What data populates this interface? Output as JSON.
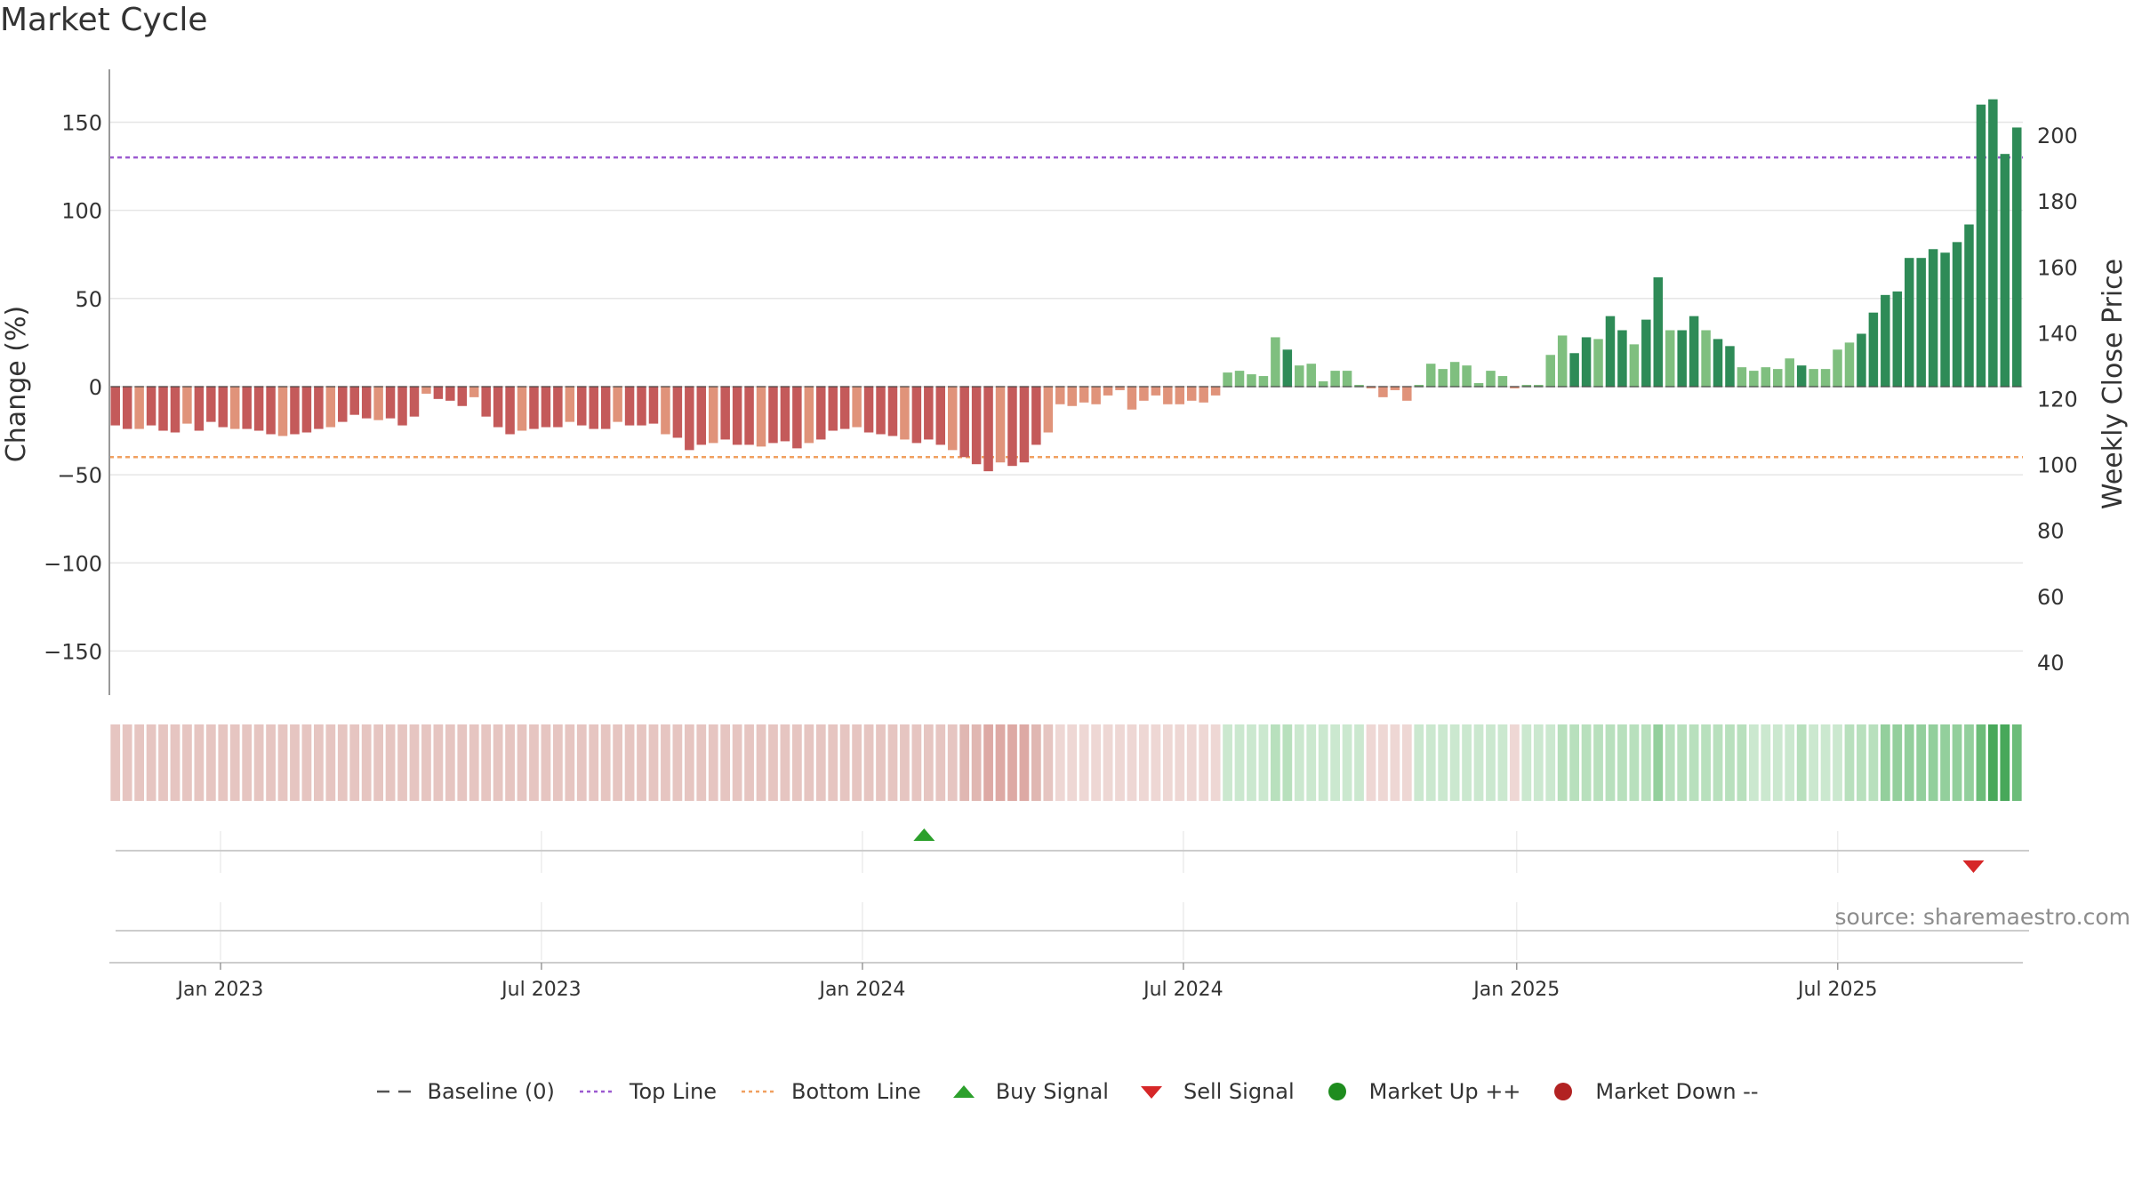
{
  "chart_data": {
    "type": "bar",
    "title": "Market Cycle",
    "ylabel_left": "Change (%)",
    "ylabel_right": "Weekly Close Price",
    "ylim_left": [
      -175,
      180
    ],
    "yticks_left": [
      150,
      100,
      50,
      0,
      -50,
      -100,
      -150
    ],
    "ytick_labels_left": [
      "150",
      "100",
      "50",
      "0",
      "−50",
      "−100",
      "−150"
    ],
    "ylim_right": [
      30,
      220
    ],
    "yticks_right": [
      200,
      180,
      160,
      140,
      120,
      100,
      80,
      60,
      40
    ],
    "ytick_labels_right": [
      "200",
      "180",
      "160",
      "140",
      "120",
      "100",
      "80",
      "60",
      "40"
    ],
    "x_start": "2022-10-31",
    "x_end": "2025-10-20",
    "xtick_dates": [
      "2023-01-02",
      "2023-07-03",
      "2024-01-01",
      "2024-07-01",
      "2025-01-06",
      "2025-07-07"
    ],
    "xtick_labels": [
      "Jan 2023",
      "Jul 2023",
      "Jan 2024",
      "Jul 2024",
      "Jan 2025",
      "Jul 2025"
    ],
    "top_line": 130,
    "bottom_line": -40,
    "baseline": 0,
    "change": [
      -22,
      -24,
      -24,
      -22,
      -25,
      -26,
      -21,
      -25,
      -20,
      -23,
      -24,
      -24,
      -25,
      -27,
      -28,
      -27,
      -26,
      -24,
      -23,
      -20,
      -16,
      -18,
      -19,
      -18,
      -22,
      -17,
      -4,
      -7,
      -8,
      -11,
      -6,
      -17,
      -23,
      -27,
      -25,
      -24,
      -23,
      -23,
      -20,
      -22,
      -24,
      -24,
      -20,
      -22,
      -22,
      -21,
      -27,
      -29,
      -36,
      -33,
      -32,
      -30,
      -33,
      -33,
      -34,
      -32,
      -31,
      -35,
      -32,
      -30,
      -25,
      -24,
      -23,
      -26,
      -27,
      -28,
      -30,
      -32,
      -30,
      -33,
      -36,
      -40,
      -44,
      -48,
      -43,
      -45,
      -43,
      -33,
      -26,
      -10,
      -11,
      -9,
      -10,
      -5,
      -2,
      -13,
      -8,
      -5,
      -10,
      -10,
      -8,
      -9,
      -5,
      8,
      9,
      7,
      6,
      28,
      21,
      12,
      13,
      3,
      9,
      9,
      1,
      -1,
      -6,
      -2,
      -8,
      1,
      13,
      10,
      14,
      12,
      2,
      9,
      6,
      -1,
      1,
      1,
      18,
      29,
      19,
      28,
      27,
      40,
      32,
      24,
      38,
      62,
      32,
      32,
      40,
      32,
      27,
      23,
      11,
      9,
      11,
      10,
      16,
      12,
      10,
      10,
      21,
      25,
      30,
      42,
      52,
      54,
      73,
      73,
      78,
      76,
      82,
      92,
      160,
      163,
      132,
      147
    ],
    "mood": [
      -3,
      -3,
      -3,
      -3,
      -3,
      -3,
      -3,
      -3,
      -3,
      -3,
      -3,
      -3,
      -3,
      -3,
      -3,
      -3,
      -3,
      -3,
      -3,
      -3,
      -3,
      -3,
      -3,
      -3,
      -3,
      -3,
      -3,
      -3,
      -3,
      -3,
      -3,
      -3,
      -3,
      -3,
      -3,
      -3,
      -3,
      -3,
      -3,
      -3,
      -3,
      -3,
      -3,
      -3,
      -3,
      -3,
      -3,
      -3,
      -3,
      -3,
      -3,
      -3,
      -3,
      -3,
      -3,
      -3,
      -3,
      -3,
      -3,
      -3,
      -3,
      -3,
      -3,
      -3,
      -3,
      -3,
      -3,
      -3,
      -3,
      -3,
      -3,
      -4,
      -4,
      -5,
      -5,
      -5,
      -5,
      -4,
      -3,
      -2,
      -2,
      -2,
      -2,
      -2,
      -2,
      -2,
      -2,
      -2,
      -2,
      -2,
      -2,
      -2,
      -2,
      2,
      2,
      2,
      2,
      3,
      3,
      2,
      2,
      2,
      2,
      2,
      2,
      -2,
      -2,
      -2,
      -2,
      2,
      2,
      2,
      2,
      2,
      2,
      2,
      2,
      -2,
      2,
      2,
      2,
      3,
      3,
      3,
      3,
      3,
      3,
      3,
      3,
      4,
      3,
      3,
      3,
      3,
      3,
      3,
      3,
      2,
      2,
      2,
      2,
      3,
      2,
      2,
      2,
      3,
      3,
      3,
      4,
      4,
      4,
      4,
      4,
      4,
      4,
      4,
      5,
      6,
      6,
      5
    ],
    "buy_signals": [
      {
        "date": "2024-02-05",
        "y": 0
      }
    ],
    "sell_signals": [
      {
        "date": "2025-09-22",
        "y": 0
      }
    ],
    "legend_position": "bottom-center",
    "colors": {
      "red_dark": "#c45a5a",
      "red_light": "#e0937a",
      "green_dark": "#2e8b57",
      "green_light": "#7fbf7f",
      "grey_bar": "#9e9e9e",
      "top_line": "#9b59d0",
      "bottom_line": "#f0a060",
      "baseline": "#555555",
      "buy": "#2ca02c",
      "sell": "#d62728",
      "grid": "#e6e6e6"
    }
  },
  "legend": [
    {
      "label": "Baseline (0)",
      "kind": "dash",
      "color": "#555555"
    },
    {
      "label": "Top Line",
      "kind": "dot",
      "color": "#9b59d0"
    },
    {
      "label": "Bottom Line",
      "kind": "dot",
      "color": "#f0a060"
    },
    {
      "label": "Buy Signal",
      "kind": "tri-up",
      "color": "#2ca02c"
    },
    {
      "label": "Sell Signal",
      "kind": "tri-down",
      "color": "#d62728"
    },
    {
      "label": "Market Up ++",
      "kind": "circle",
      "color": "#1e8c1e"
    },
    {
      "label": "Market Down --",
      "kind": "circle",
      "color": "#b22222"
    }
  ],
  "source": "source: sharemaestro.com"
}
